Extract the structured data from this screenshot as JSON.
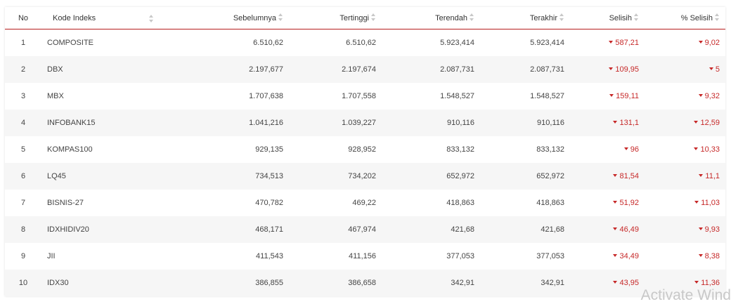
{
  "table": {
    "headers": {
      "no": "No",
      "kode": "Kode Indeks",
      "sebelumnya": "Sebelumnya",
      "tertinggi": "Tertinggi",
      "terendah": "Terendah",
      "terakhir": "Terakhir",
      "selisih": "Selisih",
      "pct_selisih": "% Selisih"
    },
    "rows": [
      {
        "no": "1",
        "kode": "COMPOSITE",
        "sebelumnya": "6.510,62",
        "tertinggi": "6.510,62",
        "terendah": "5.923,414",
        "terakhir": "5.923,414",
        "selisih": "587,21",
        "pct": "9,02"
      },
      {
        "no": "2",
        "kode": "DBX",
        "sebelumnya": "2.197,677",
        "tertinggi": "2.197,674",
        "terendah": "2.087,731",
        "terakhir": "2.087,731",
        "selisih": "109,95",
        "pct": "5"
      },
      {
        "no": "3",
        "kode": "MBX",
        "sebelumnya": "1.707,638",
        "tertinggi": "1.707,558",
        "terendah": "1.548,527",
        "terakhir": "1.548,527",
        "selisih": "159,11",
        "pct": "9,32"
      },
      {
        "no": "4",
        "kode": "INFOBANK15",
        "sebelumnya": "1.041,216",
        "tertinggi": "1.039,227",
        "terendah": "910,116",
        "terakhir": "910,116",
        "selisih": "131,1",
        "pct": "12,59"
      },
      {
        "no": "5",
        "kode": "KOMPAS100",
        "sebelumnya": "929,135",
        "tertinggi": "928,952",
        "terendah": "833,132",
        "terakhir": "833,132",
        "selisih": "96",
        "pct": "10,33"
      },
      {
        "no": "6",
        "kode": "LQ45",
        "sebelumnya": "734,513",
        "tertinggi": "734,202",
        "terendah": "652,972",
        "terakhir": "652,972",
        "selisih": "81,54",
        "pct": "11,1"
      },
      {
        "no": "7",
        "kode": "BISNIS-27",
        "sebelumnya": "470,782",
        "tertinggi": "469,22",
        "terendah": "418,863",
        "terakhir": "418,863",
        "selisih": "51,92",
        "pct": "11,03"
      },
      {
        "no": "8",
        "kode": "IDXHIDIV20",
        "sebelumnya": "468,171",
        "tertinggi": "467,974",
        "terendah": "421,68",
        "terakhir": "421,68",
        "selisih": "46,49",
        "pct": "9,93"
      },
      {
        "no": "9",
        "kode": "JII",
        "sebelumnya": "411,543",
        "tertinggi": "411,156",
        "terendah": "377,053",
        "terakhir": "377,053",
        "selisih": "34,49",
        "pct": "8,38"
      },
      {
        "no": "10",
        "kode": "IDX30",
        "sebelumnya": "386,855",
        "tertinggi": "386,658",
        "terendah": "342,91",
        "terakhir": "342,91",
        "selisih": "43,95",
        "pct": "11,36"
      }
    ]
  },
  "watermark": "Activate Wind",
  "colors": {
    "negative": "#c62828",
    "header_rule": "#b71c1c",
    "stripe": "#f6f6f6"
  },
  "icons": {
    "sort": "sort-icon",
    "down": "caret-down-icon"
  }
}
